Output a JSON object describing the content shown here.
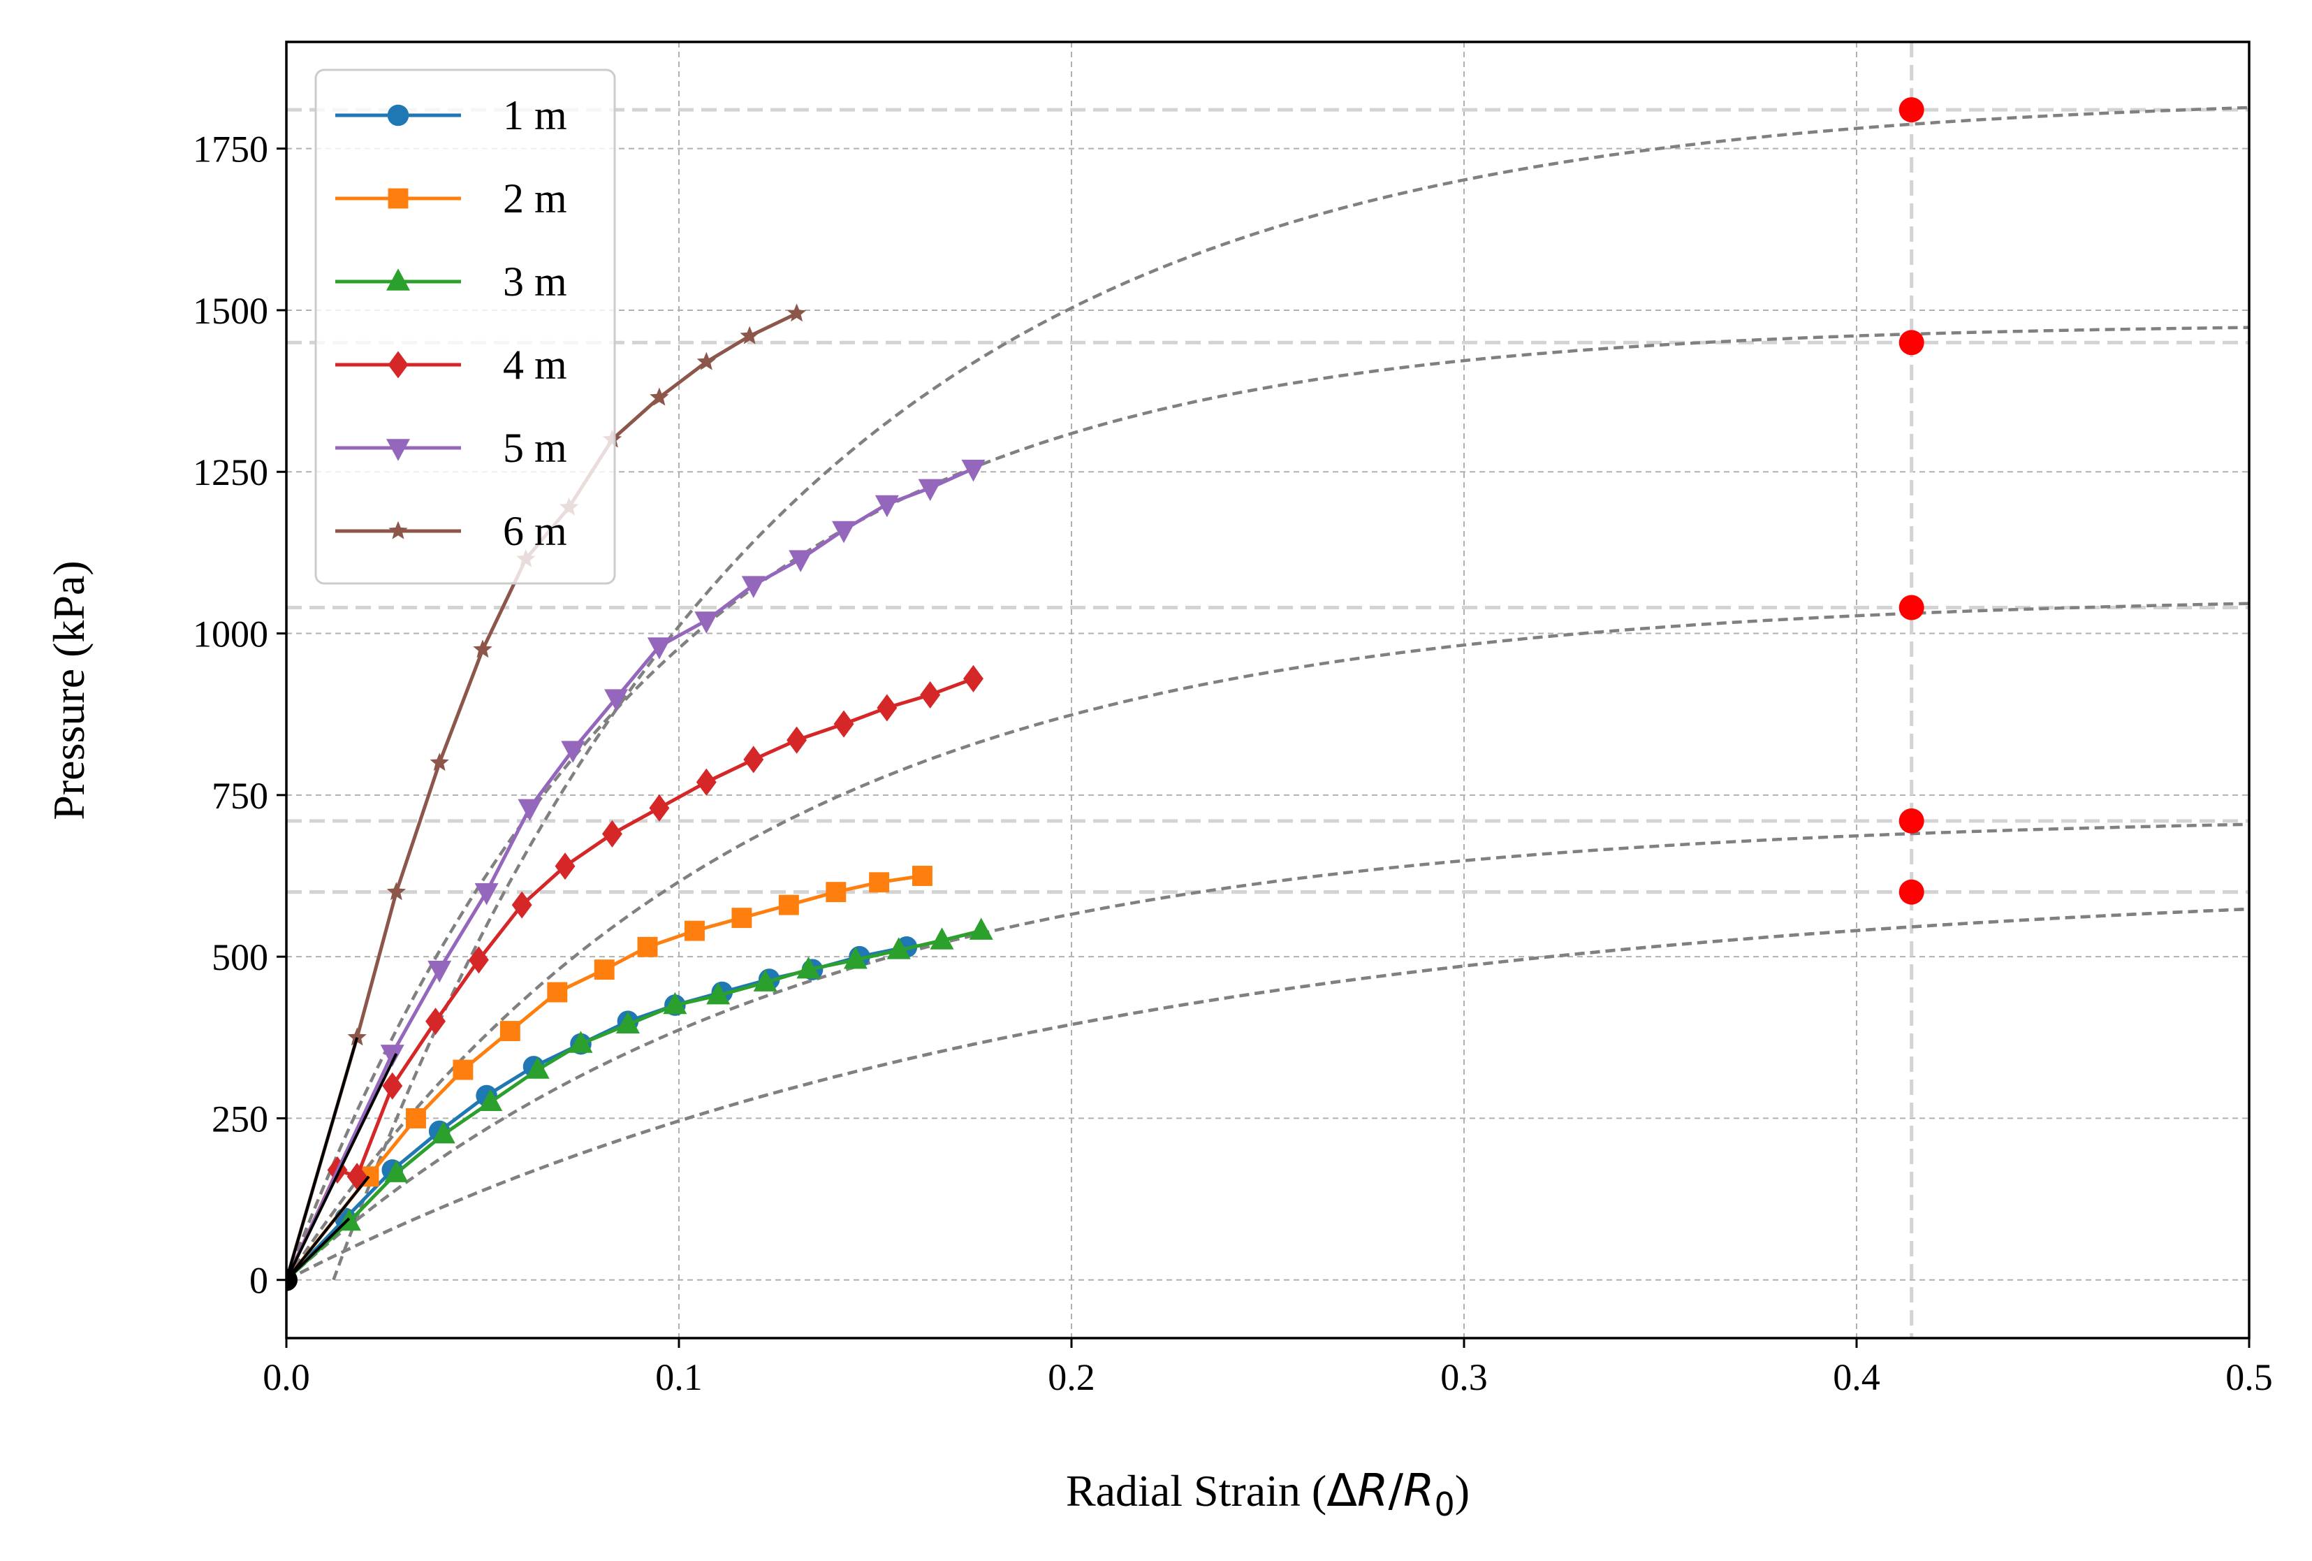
{
  "chart_data": {
    "type": "line",
    "title": "",
    "xlabel": "Radial Strain (ΔR/R0)",
    "xlabel_parts": {
      "main": "Radial Strain (",
      "delta": "Δ",
      "r": "R",
      "slash": "/",
      "r0": "R",
      "sub": "0",
      "close": ")"
    },
    "ylabel": "Pressure (kPa)",
    "xlim": [
      0.0,
      0.5
    ],
    "ylim": [
      -90,
      1915
    ],
    "xticks": [
      0.0,
      0.1,
      0.2,
      0.3,
      0.4,
      0.5
    ],
    "xtick_labels": [
      "0.0",
      "0.1",
      "0.2",
      "0.3",
      "0.4",
      "0.5"
    ],
    "yticks": [
      0,
      250,
      500,
      750,
      1000,
      1250,
      1500,
      1750
    ],
    "ytick_labels": [
      "0",
      "250",
      "500",
      "750",
      "1000",
      "1250",
      "1500",
      "1750"
    ],
    "grid": true,
    "legend_position": "top-left",
    "limit_strain": 0.414,
    "series": [
      {
        "name": "1 m",
        "label": "1 m",
        "color": "#1f77b4",
        "marker": "circle",
        "x": [
          0.0,
          0.015,
          0.027,
          0.039,
          0.051,
          0.063,
          0.075,
          0.087,
          0.099,
          0.111,
          0.123,
          0.134,
          0.146,
          0.158
        ],
        "y": [
          0,
          95,
          170,
          230,
          285,
          330,
          365,
          400,
          425,
          445,
          465,
          480,
          500,
          515
        ],
        "fit": {
          "a": 625,
          "b": 5.0,
          "shift": 0.0
        },
        "asymptote": 600
      },
      {
        "name": "2 m",
        "label": "2 m",
        "color": "#ff7f0e",
        "marker": "square",
        "x": [
          0.0,
          0.021,
          0.033,
          0.045,
          0.057,
          0.069,
          0.081,
          0.092,
          0.104,
          0.116,
          0.128,
          0.14,
          0.151,
          0.162
        ],
        "y": [
          0,
          160,
          250,
          325,
          385,
          445,
          480,
          515,
          540,
          560,
          580,
          600,
          615,
          625
        ],
        "fit": {
          "a": 720,
          "b": 7.7,
          "shift": 0.0
        },
        "asymptote": 710
      },
      {
        "name": "3 m",
        "label": "3 m",
        "color": "#2ca02c",
        "marker": "triangle-up",
        "x": [
          0.0,
          0.016,
          0.028,
          0.04,
          0.052,
          0.064,
          0.075,
          0.087,
          0.099,
          0.11,
          0.122,
          0.133,
          0.145,
          0.156,
          0.167,
          0.177
        ],
        "y": [
          0,
          90,
          165,
          225,
          275,
          325,
          365,
          395,
          425,
          440,
          460,
          480,
          495,
          510,
          525,
          540
        ],
        "fit": {
          "a": 625,
          "b": 5.0,
          "shift": 0.0
        },
        "asymptote": 600
      },
      {
        "name": "4 m",
        "label": "4 m",
        "color": "#d62728",
        "marker": "diamond",
        "x": [
          0.0,
          0.013,
          0.018,
          0.027,
          0.038,
          0.049,
          0.06,
          0.071,
          0.083,
          0.095,
          0.107,
          0.119,
          0.13,
          0.142,
          0.153,
          0.164,
          0.175
        ],
        "y": [
          0,
          170,
          160,
          300,
          400,
          495,
          580,
          640,
          690,
          730,
          770,
          805,
          835,
          860,
          885,
          905,
          930
        ],
        "fit": {
          "a": 1060,
          "b": 8.7,
          "shift": 0.0
        },
        "asymptote": 1040
      },
      {
        "name": "5 m",
        "label": "5 m",
        "color": "#9467bd",
        "marker": "triangle-down",
        "x": [
          0.0,
          0.027,
          0.039,
          0.051,
          0.062,
          0.073,
          0.084,
          0.095,
          0.107,
          0.119,
          0.131,
          0.142,
          0.153,
          0.164,
          0.175
        ],
        "y": [
          0,
          350,
          480,
          600,
          730,
          820,
          900,
          980,
          1020,
          1075,
          1115,
          1160,
          1200,
          1225,
          1255
        ],
        "fit": {
          "a": 1480,
          "b": 10.8,
          "shift": 0.0
        },
        "asymptote": 1450
      },
      {
        "name": "6 m",
        "label": "6 m",
        "color": "#8c564b",
        "marker": "star",
        "x": [
          0.0,
          0.018,
          0.028,
          0.039,
          0.05,
          0.061,
          0.072,
          0.083,
          0.095,
          0.107,
          0.118,
          0.13
        ],
        "y": [
          0,
          375,
          600,
          800,
          975,
          1115,
          1195,
          1300,
          1365,
          1420,
          1460,
          1495
        ],
        "fit": {
          "a": 1835,
          "b": 9.1,
          "shift": 0.012
        },
        "asymptote": 1810
      }
    ],
    "markers_at_limit": [
      {
        "x": 0.414,
        "y": 1810,
        "color": "#ff0000"
      },
      {
        "x": 0.414,
        "y": 1450,
        "color": "#ff0000"
      },
      {
        "x": 0.414,
        "y": 1040,
        "color": "#ff0000"
      },
      {
        "x": 0.414,
        "y": 710,
        "color": "#ff0000"
      },
      {
        "x": 0.414,
        "y": 600,
        "color": "#ff0000"
      }
    ],
    "initial_slopes": [
      {
        "x": [
          0.0,
          0.018
        ],
        "y": [
          0,
          375
        ]
      },
      {
        "x": [
          0.0,
          0.028
        ],
        "y": [
          0,
          350
        ]
      },
      {
        "x": [
          0.0,
          0.021
        ],
        "y": [
          0,
          160
        ]
      },
      {
        "x": [
          0.0,
          0.016
        ],
        "y": [
          0,
          95
        ]
      }
    ],
    "colors": {
      "fit": "#808080",
      "asymptote": "#d3d3d3",
      "grid": "#b0b0b0",
      "slope": "#000000",
      "limit_marker": "#ff0000"
    }
  }
}
